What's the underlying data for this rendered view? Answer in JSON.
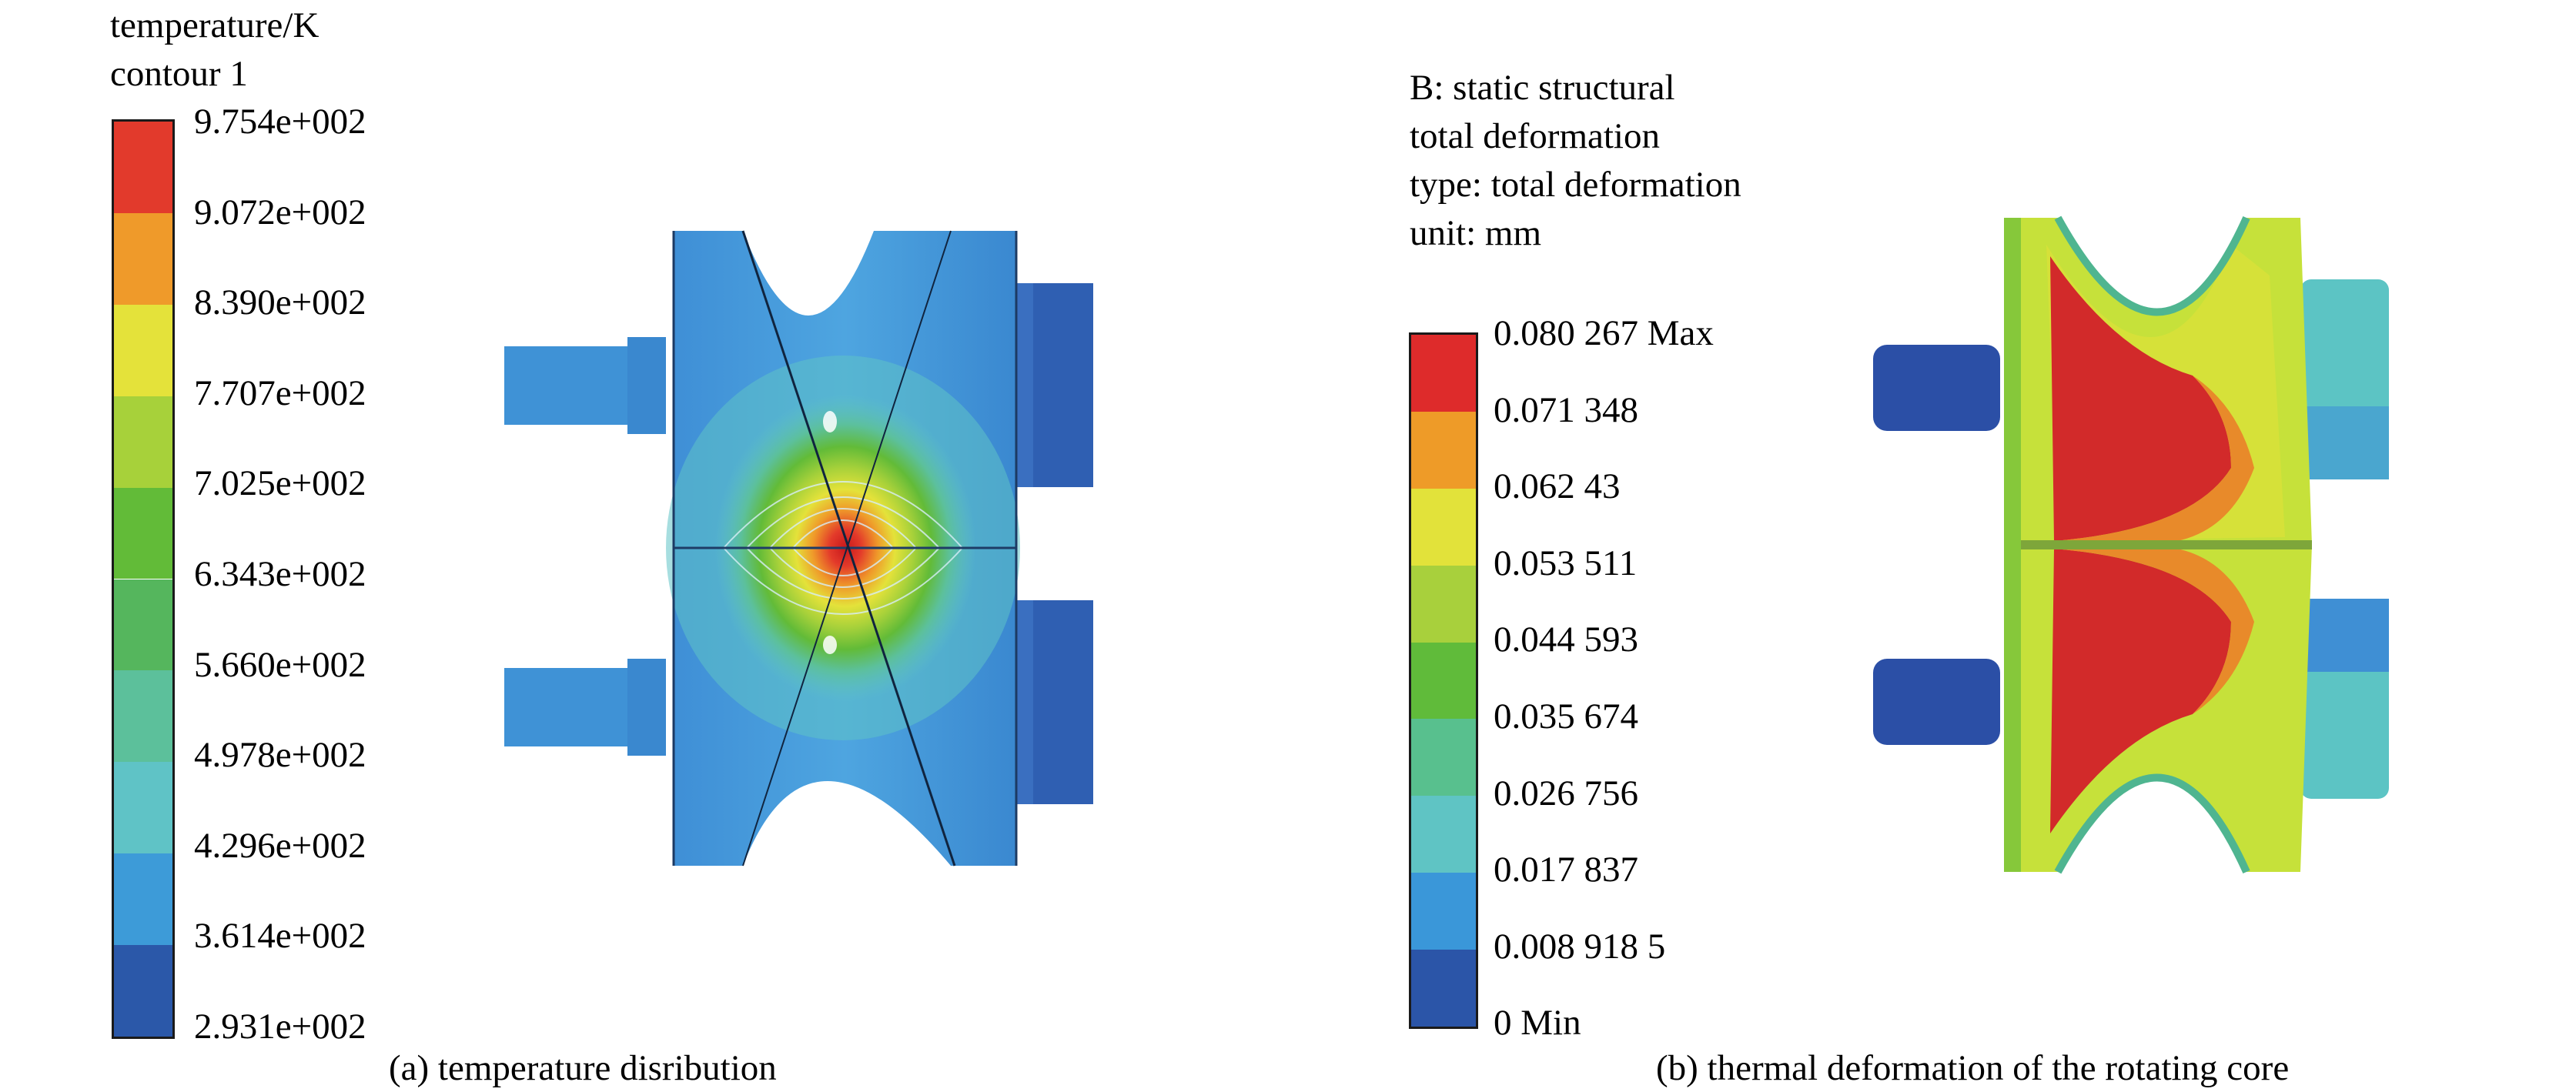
{
  "panel_a": {
    "header": [
      "temperature/K",
      "contour 1"
    ],
    "legend_labels": [
      "9.754e+002",
      "9.072e+002",
      "8.390e+002",
      "7.707e+002",
      "7.025e+002",
      "6.343e+002",
      "5.660e+002",
      "4.978e+002",
      "4.296e+002",
      "3.614e+002",
      "2.931e+002"
    ],
    "legend_colors": [
      "#e23a2c",
      "#ef9a2a",
      "#e4e23a",
      "#a7d13a",
      "#62bb38",
      "#55b65d",
      "#5cc09b",
      "#5fc3c6",
      "#3d9bd8",
      "#2b58a9"
    ],
    "caption": "(a) temperature disribution"
  },
  "panel_b": {
    "header": [
      "B: static structural",
      "total deformation",
      "type: total deformation",
      "unit: mm"
    ],
    "legend_labels": [
      "0.080 267 Max",
      "0.071 348",
      "0.062 43",
      "0.053 511",
      "0.044 593",
      "0.035 674",
      "0.026 756",
      "0.017 837",
      "0.008 918 5",
      "0 Min"
    ],
    "legend_colors": [
      "#de2b2b",
      "#ee9b28",
      "#e2e23a",
      "#a8d03c",
      "#60bb3a",
      "#58c08e",
      "#5fc4c4",
      "#3a97d9",
      "#2b55a8"
    ],
    "caption": "(b) thermal deformation of the rotating core"
  }
}
